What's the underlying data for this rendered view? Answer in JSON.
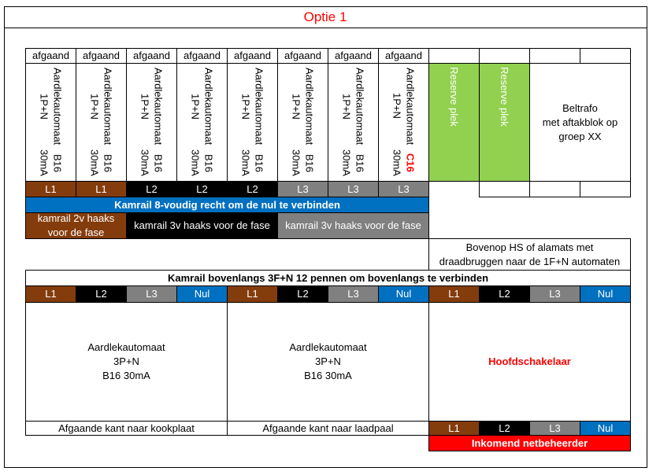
{
  "title": "Optie 1",
  "outgoing": {
    "headers": [
      "afgaand",
      "afgaand",
      "afgaand",
      "afgaand",
      "afgaand",
      "afgaand",
      "afgaand",
      "afgaand"
    ],
    "modules": [
      {
        "type": "Aardlekautomaat 1P+N",
        "rating": "B16",
        "sensitivity": "30mA"
      },
      {
        "type": "Aardlekautomaat 1P+N",
        "rating": "B16",
        "sensitivity": "30mA"
      },
      {
        "type": "Aardlekautomaat 1P+N",
        "rating": "B16",
        "sensitivity": "30mA"
      },
      {
        "type": "Aardlekautomaat 1P+N",
        "rating": "B16",
        "sensitivity": "30mA"
      },
      {
        "type": "Aardlekautomaat 1P+N",
        "rating": "B16",
        "sensitivity": "30mA"
      },
      {
        "type": "Aardlekautomaat 1P+N",
        "rating": "B16",
        "sensitivity": "30mA"
      },
      {
        "type": "Aardlekautomaat 1P+N",
        "rating": "B16",
        "sensitivity": "30mA"
      },
      {
        "type": "Aardlekautomaat 1P+N",
        "rating": "C16",
        "sensitivity": "30mA",
        "rating_color": "#ff0000"
      }
    ],
    "phases": [
      {
        "label": "L1",
        "color": "#843c0c"
      },
      {
        "label": "L1",
        "color": "#843c0c"
      },
      {
        "label": "L2",
        "color": "#000000"
      },
      {
        "label": "L2",
        "color": "#000000"
      },
      {
        "label": "L2",
        "color": "#000000"
      },
      {
        "label": "L3",
        "color": "#808080"
      },
      {
        "label": "L3",
        "color": "#808080"
      },
      {
        "label": "L3",
        "color": "#808080"
      }
    ]
  },
  "reserve": [
    "Reserve plek",
    "Reserve plek"
  ],
  "beltrafo": [
    "Beltrafo",
    "met aftakblok op",
    "groep  XX"
  ],
  "kamrail_8": "Kamrail 8-voudig recht om de nul te verbinden",
  "kamrails": [
    {
      "lines": [
        "kamrail 2v haaks",
        "voor de fase"
      ],
      "color": "#843c0c"
    },
    {
      "lines": [
        "kamrail 3v haaks voor de fase"
      ],
      "color": "#000000"
    },
    {
      "lines": [
        "kamrail 3v haaks voor de fase"
      ],
      "color": "#808080"
    }
  ],
  "bovenop": [
    "Bovenop HS of alamats met",
    "draadbruggen naar de 1F+N automaten"
  ],
  "kamrail_bovenlangs": "Kamrail bovenlangs 3F+N 12 pennen om bovenlangs te verbinden",
  "top_phases": [
    {
      "label": "L1",
      "color": "#843c0c"
    },
    {
      "label": "L2",
      "color": "#000000"
    },
    {
      "label": "L3",
      "color": "#808080"
    },
    {
      "label": "Nul",
      "color": "#0070c0"
    },
    {
      "label": "L1",
      "color": "#843c0c"
    },
    {
      "label": "L2",
      "color": "#000000"
    },
    {
      "label": "L3",
      "color": "#808080"
    },
    {
      "label": "Nul",
      "color": "#0070c0"
    },
    {
      "label": "L1",
      "color": "#843c0c"
    },
    {
      "label": "L2",
      "color": "#000000"
    },
    {
      "label": "L3",
      "color": "#808080"
    },
    {
      "label": "Nul",
      "color": "#0070c0"
    }
  ],
  "devices": [
    {
      "lines": [
        "Aardlekautomaat",
        "3P+N",
        "B16 30mA"
      ],
      "footer": "Afgaande kant naar kookplaat"
    },
    {
      "lines": [
        "Aardlekautomaat",
        "3P+N",
        "B16 30mA"
      ],
      "footer": "Afgaande kant naar laadpaal"
    }
  ],
  "main_switch": "Hoofdschakelaar",
  "incoming_phases": [
    {
      "label": "L1",
      "color": "#843c0c"
    },
    {
      "label": "L2",
      "color": "#000000"
    },
    {
      "label": "L3",
      "color": "#808080"
    },
    {
      "label": "Nul",
      "color": "#0070c0"
    }
  ],
  "incoming": "Inkomend netbeheerder"
}
